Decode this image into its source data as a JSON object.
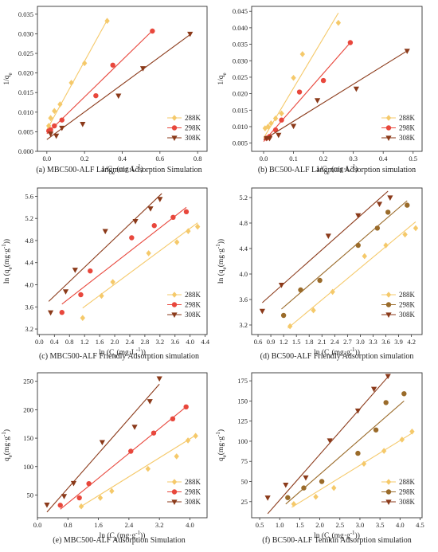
{
  "figure": {
    "panels": [
      {
        "caption": "(a) MBC500-ALF Langmuir Adsorption Simulation"
      },
      {
        "caption": "(b) BC500-ALF Langmuir Adsorption simulation"
      },
      {
        "caption": "(c) MBC500-ALF Friendly Adsorption simulation"
      },
      {
        "caption": "(d) BC500-ALF Friendly Adsorption simulation"
      },
      {
        "caption": "(e) MBC500-ALF Adsorption Simulation"
      },
      {
        "caption": "(f) BC500-ALF Temkin Adsorption simulation"
      }
    ]
  },
  "colors": {
    "288K": "#f5c96a",
    "298K": "#e8473c",
    "308K": "#8b3a1a",
    "298K_d": "#9a6b2a"
  },
  "chart_data": [
    {
      "type": "scatter",
      "xlabel": "1/C_e (mg·L^-1)",
      "ylabel": "1/q_e",
      "xlim": [
        -0.05,
        0.85
      ],
      "ylim": [
        0,
        0.037
      ],
      "xticks": [
        "0.0",
        "0.2",
        "0.4",
        "0.6",
        "0.8"
      ],
      "yticks": [
        "0.000",
        "0.005",
        "0.010",
        "0.015",
        "0.020",
        "0.025",
        "0.030",
        "0.035"
      ],
      "legend_position": "bottom-right",
      "series": [
        {
          "name": "288K",
          "marker": "diamond",
          "color": "#f5c96a",
          "x": [
            0.01,
            0.02,
            0.04,
            0.07,
            0.13,
            0.2,
            0.32
          ],
          "y": [
            0.0065,
            0.0085,
            0.0103,
            0.012,
            0.0175,
            0.0225,
            0.0333
          ],
          "fit": [
            [
              0.0,
              0.0055
            ],
            [
              0.32,
              0.0335
            ]
          ]
        },
        {
          "name": "298K",
          "marker": "circle",
          "color": "#e8473c",
          "x": [
            0.01,
            0.02,
            0.04,
            0.08,
            0.26,
            0.35,
            0.56
          ],
          "y": [
            0.0052,
            0.0055,
            0.0065,
            0.008,
            0.0142,
            0.022,
            0.0307
          ],
          "fit": [
            [
              0.0,
              0.0045
            ],
            [
              0.56,
              0.0308
            ]
          ]
        },
        {
          "name": "308K",
          "marker": "triangle-down",
          "color": "#8b3a1a",
          "x": [
            0.02,
            0.05,
            0.08,
            0.19,
            0.38,
            0.51,
            0.76
          ],
          "y": [
            0.0045,
            0.004,
            0.006,
            0.007,
            0.0142,
            0.0212,
            0.03
          ],
          "fit": [
            [
              0.0,
              0.003
            ],
            [
              0.76,
              0.0298
            ]
          ]
        }
      ]
    },
    {
      "type": "scatter",
      "xlabel": "1/C_e (mg·L^-1)",
      "ylabel": "1/q_e",
      "xlim": [
        -0.04,
        0.53
      ],
      "ylim": [
        0.0025,
        0.0465
      ],
      "xticks": [
        "0.0",
        "0.1",
        "0.2",
        "0.3",
        "0.4",
        "0.5"
      ],
      "yticks": [
        "0.005",
        "0.010",
        "0.015",
        "0.020",
        "0.025",
        "0.030",
        "0.035",
        "0.040",
        "0.045"
      ],
      "legend_position": "bottom-right",
      "series": [
        {
          "name": "288K",
          "marker": "diamond",
          "color": "#f5c96a",
          "x": [
            0.005,
            0.015,
            0.025,
            0.04,
            0.06,
            0.1,
            0.13,
            0.25
          ],
          "y": [
            0.0095,
            0.01,
            0.011,
            0.0125,
            0.014,
            0.0248,
            0.032,
            0.0415
          ],
          "fit": [
            [
              0.0,
              0.0065
            ],
            [
              0.25,
              0.0445
            ]
          ]
        },
        {
          "name": "298K",
          "marker": "circle",
          "color": "#e8473c",
          "x": [
            0.01,
            0.02,
            0.04,
            0.06,
            0.12,
            0.2,
            0.29
          ],
          "y": [
            0.0065,
            0.007,
            0.009,
            0.012,
            0.0205,
            0.024,
            0.0355
          ],
          "fit": [
            [
              0.0,
              0.0055
            ],
            [
              0.29,
              0.0355
            ]
          ]
        },
        {
          "name": "308K",
          "marker": "triangle-down",
          "color": "#8b3a1a",
          "x": [
            0.01,
            0.02,
            0.05,
            0.1,
            0.18,
            0.31,
            0.48
          ],
          "y": [
            0.0065,
            0.0065,
            0.0075,
            0.0102,
            0.018,
            0.0215,
            0.033
          ],
          "fit": [
            [
              0.0,
              0.006
            ],
            [
              0.48,
              0.033
            ]
          ]
        }
      ]
    },
    {
      "type": "scatter",
      "xlabel": "ln (C_e(mg·L^-1))",
      "ylabel": "ln (q_e(mg·g^-1))",
      "xlim": [
        -0.05,
        4.45
      ],
      "ylim": [
        3.1,
        5.75
      ],
      "xticks": [
        "0.0",
        "0.4",
        "0.8",
        "1.2",
        "1.6",
        "2.0",
        "2.4",
        "2.8",
        "3.2",
        "3.6",
        "4.0",
        "4.4"
      ],
      "yticks": [
        "3.2",
        "3.6",
        "4.0",
        "4.4",
        "4.8",
        "5.2",
        "5.6"
      ],
      "legend_position": "bottom-right",
      "series": [
        {
          "name": "288K",
          "marker": "diamond",
          "color": "#f5c96a",
          "x": [
            1.15,
            1.65,
            1.95,
            2.9,
            3.65,
            3.95,
            4.2
          ],
          "y": [
            3.4,
            3.8,
            4.05,
            4.57,
            4.77,
            4.97,
            5.05
          ],
          "fit": [
            [
              1.15,
              3.58
            ],
            [
              4.2,
              5.12
            ]
          ]
        },
        {
          "name": "298K",
          "marker": "circle",
          "color": "#e8473c",
          "x": [
            0.6,
            1.1,
            1.35,
            2.45,
            3.05,
            3.55,
            3.9
          ],
          "y": [
            3.5,
            3.82,
            4.25,
            4.85,
            5.07,
            5.22,
            5.32
          ],
          "fit": [
            [
              0.6,
              3.65
            ],
            [
              3.9,
              5.4
            ]
          ]
        },
        {
          "name": "308K",
          "marker": "triangle-down",
          "color": "#8b3a1a",
          "x": [
            0.3,
            0.7,
            0.95,
            1.75,
            2.55,
            2.95,
            3.2
          ],
          "y": [
            3.5,
            3.88,
            4.27,
            4.97,
            5.15,
            5.38,
            5.55
          ],
          "fit": [
            [
              0.25,
              3.7
            ],
            [
              3.25,
              5.65
            ]
          ]
        }
      ]
    },
    {
      "type": "scatter",
      "xlabel": "ln (C_e(mg·g^-1))",
      "ylabel": "ln (q_e(mg·g^-1))",
      "xlim": [
        0.45,
        4.45
      ],
      "ylim": [
        3.05,
        5.35
      ],
      "xticks": [
        "0.6",
        "0.9",
        "1.2",
        "1.5",
        "1.8",
        "2.1",
        "2.4",
        "2.7",
        "3.0",
        "3.3",
        "3.6",
        "3.9",
        "4.2"
      ],
      "yticks": [
        "3.2",
        "3.6",
        "4.0",
        "4.4",
        "4.8",
        "5.2"
      ],
      "legend_position": "bottom-right",
      "series": [
        {
          "name": "288K",
          "marker": "diamond",
          "color": "#f5c96a",
          "x": [
            1.35,
            1.9,
            2.35,
            3.1,
            3.6,
            4.05,
            4.3
          ],
          "y": [
            3.18,
            3.43,
            3.72,
            4.28,
            4.45,
            4.62,
            4.72
          ],
          "fit": [
            [
              1.3,
              3.15
            ],
            [
              4.3,
              4.82
            ]
          ]
        },
        {
          "name": "298K",
          "marker": "circle",
          "color": "#9a6b2a",
          "x": [
            1.2,
            1.6,
            2.05,
            2.95,
            3.4,
            3.65,
            4.1
          ],
          "y": [
            3.35,
            3.75,
            3.9,
            4.45,
            4.72,
            4.97,
            5.08
          ],
          "fit": [
            [
              1.15,
              3.45
            ],
            [
              4.1,
              5.15
            ]
          ]
        },
        {
          "name": "308K",
          "marker": "triangle-down",
          "color": "#8b3a1a",
          "x": [
            0.7,
            1.15,
            2.25,
            2.95,
            3.45,
            3.7
          ],
          "y": [
            3.42,
            3.83,
            4.6,
            4.92,
            5.1,
            5.2
          ],
          "fit": [
            [
              0.7,
              3.55
            ],
            [
              3.65,
              5.3
            ]
          ]
        }
      ]
    },
    {
      "type": "scatter",
      "xlabel": "ln (C_e(mg·g^-1))",
      "ylabel": "q_e(mg·g^-1)",
      "xlim": [
        0.0,
        4.45
      ],
      "ylim": [
        10,
        265
      ],
      "xticks": [
        "0.0",
        "0.8",
        "1.6",
        "2.4",
        "3.2",
        "4.0"
      ],
      "yticks": [
        "50",
        "100",
        "150",
        "200",
        "250"
      ],
      "legend_position": "bottom-right",
      "series": [
        {
          "name": "288K",
          "marker": "diamond",
          "color": "#f5c96a",
          "x": [
            1.15,
            1.65,
            1.95,
            2.9,
            3.65,
            3.95,
            4.15
          ],
          "y": [
            30,
            45,
            57,
            96,
            118,
            146,
            154
          ],
          "fit": [
            [
              1.1,
              28
            ],
            [
              4.15,
              155
            ]
          ]
        },
        {
          "name": "298K",
          "marker": "circle",
          "color": "#e8473c",
          "x": [
            0.6,
            1.1,
            1.35,
            2.45,
            3.05,
            3.55,
            3.9
          ],
          "y": [
            32,
            45,
            70,
            127,
            159,
            184,
            205
          ],
          "fit": [
            [
              0.6,
              25
            ],
            [
              3.9,
              205
            ]
          ]
        },
        {
          "name": "308K",
          "marker": "triangle-down",
          "color": "#8b3a1a",
          "x": [
            0.25,
            0.7,
            0.95,
            1.7,
            2.55,
            2.95,
            3.2
          ],
          "y": [
            33,
            48,
            71,
            143,
            170,
            215,
            255
          ],
          "fit": [
            [
              0.25,
              20
            ],
            [
              3.2,
              245
            ]
          ]
        }
      ]
    },
    {
      "type": "scatter",
      "xlabel": "ln (C_e(mg·g^-1))",
      "ylabel": "q_e(mg·g^-1)",
      "xlim": [
        0.3,
        4.55
      ],
      "ylim": [
        5,
        185
      ],
      "xticks": [
        "0.5",
        "1.0",
        "1.5",
        "2.0",
        "2.5",
        "3.0",
        "3.5",
        "4.0",
        "4.5"
      ],
      "yticks": [
        "25",
        "50",
        "75",
        "100",
        "125",
        "150",
        "175"
      ],
      "legend_position": "bottom-right",
      "series": [
        {
          "name": "288K",
          "marker": "diamond",
          "color": "#f5c96a",
          "x": [
            1.35,
            1.9,
            2.35,
            3.1,
            3.6,
            4.05,
            4.3
          ],
          "y": [
            22,
            31,
            42,
            72,
            88,
            102,
            112
          ],
          "fit": [
            [
              1.3,
              18
            ],
            [
              4.3,
              110
            ]
          ]
        },
        {
          "name": "298K",
          "marker": "circle",
          "color": "#9a6b2a",
          "x": [
            1.2,
            1.6,
            2.05,
            2.95,
            3.4,
            3.65,
            4.1
          ],
          "y": [
            30,
            42,
            50,
            85,
            114,
            148,
            159
          ],
          "fit": [
            [
              1.15,
              22
            ],
            [
              4.1,
              150
            ]
          ]
        },
        {
          "name": "308K",
          "marker": "triangle-down",
          "color": "#8b3a1a",
          "x": [
            0.7,
            1.15,
            1.65,
            2.25,
            2.95,
            3.35,
            3.7
          ],
          "y": [
            30,
            46,
            55,
            101,
            138,
            165,
            181
          ],
          "fit": [
            [
              0.7,
              10
            ],
            [
              3.7,
              180
            ]
          ]
        }
      ]
    }
  ]
}
